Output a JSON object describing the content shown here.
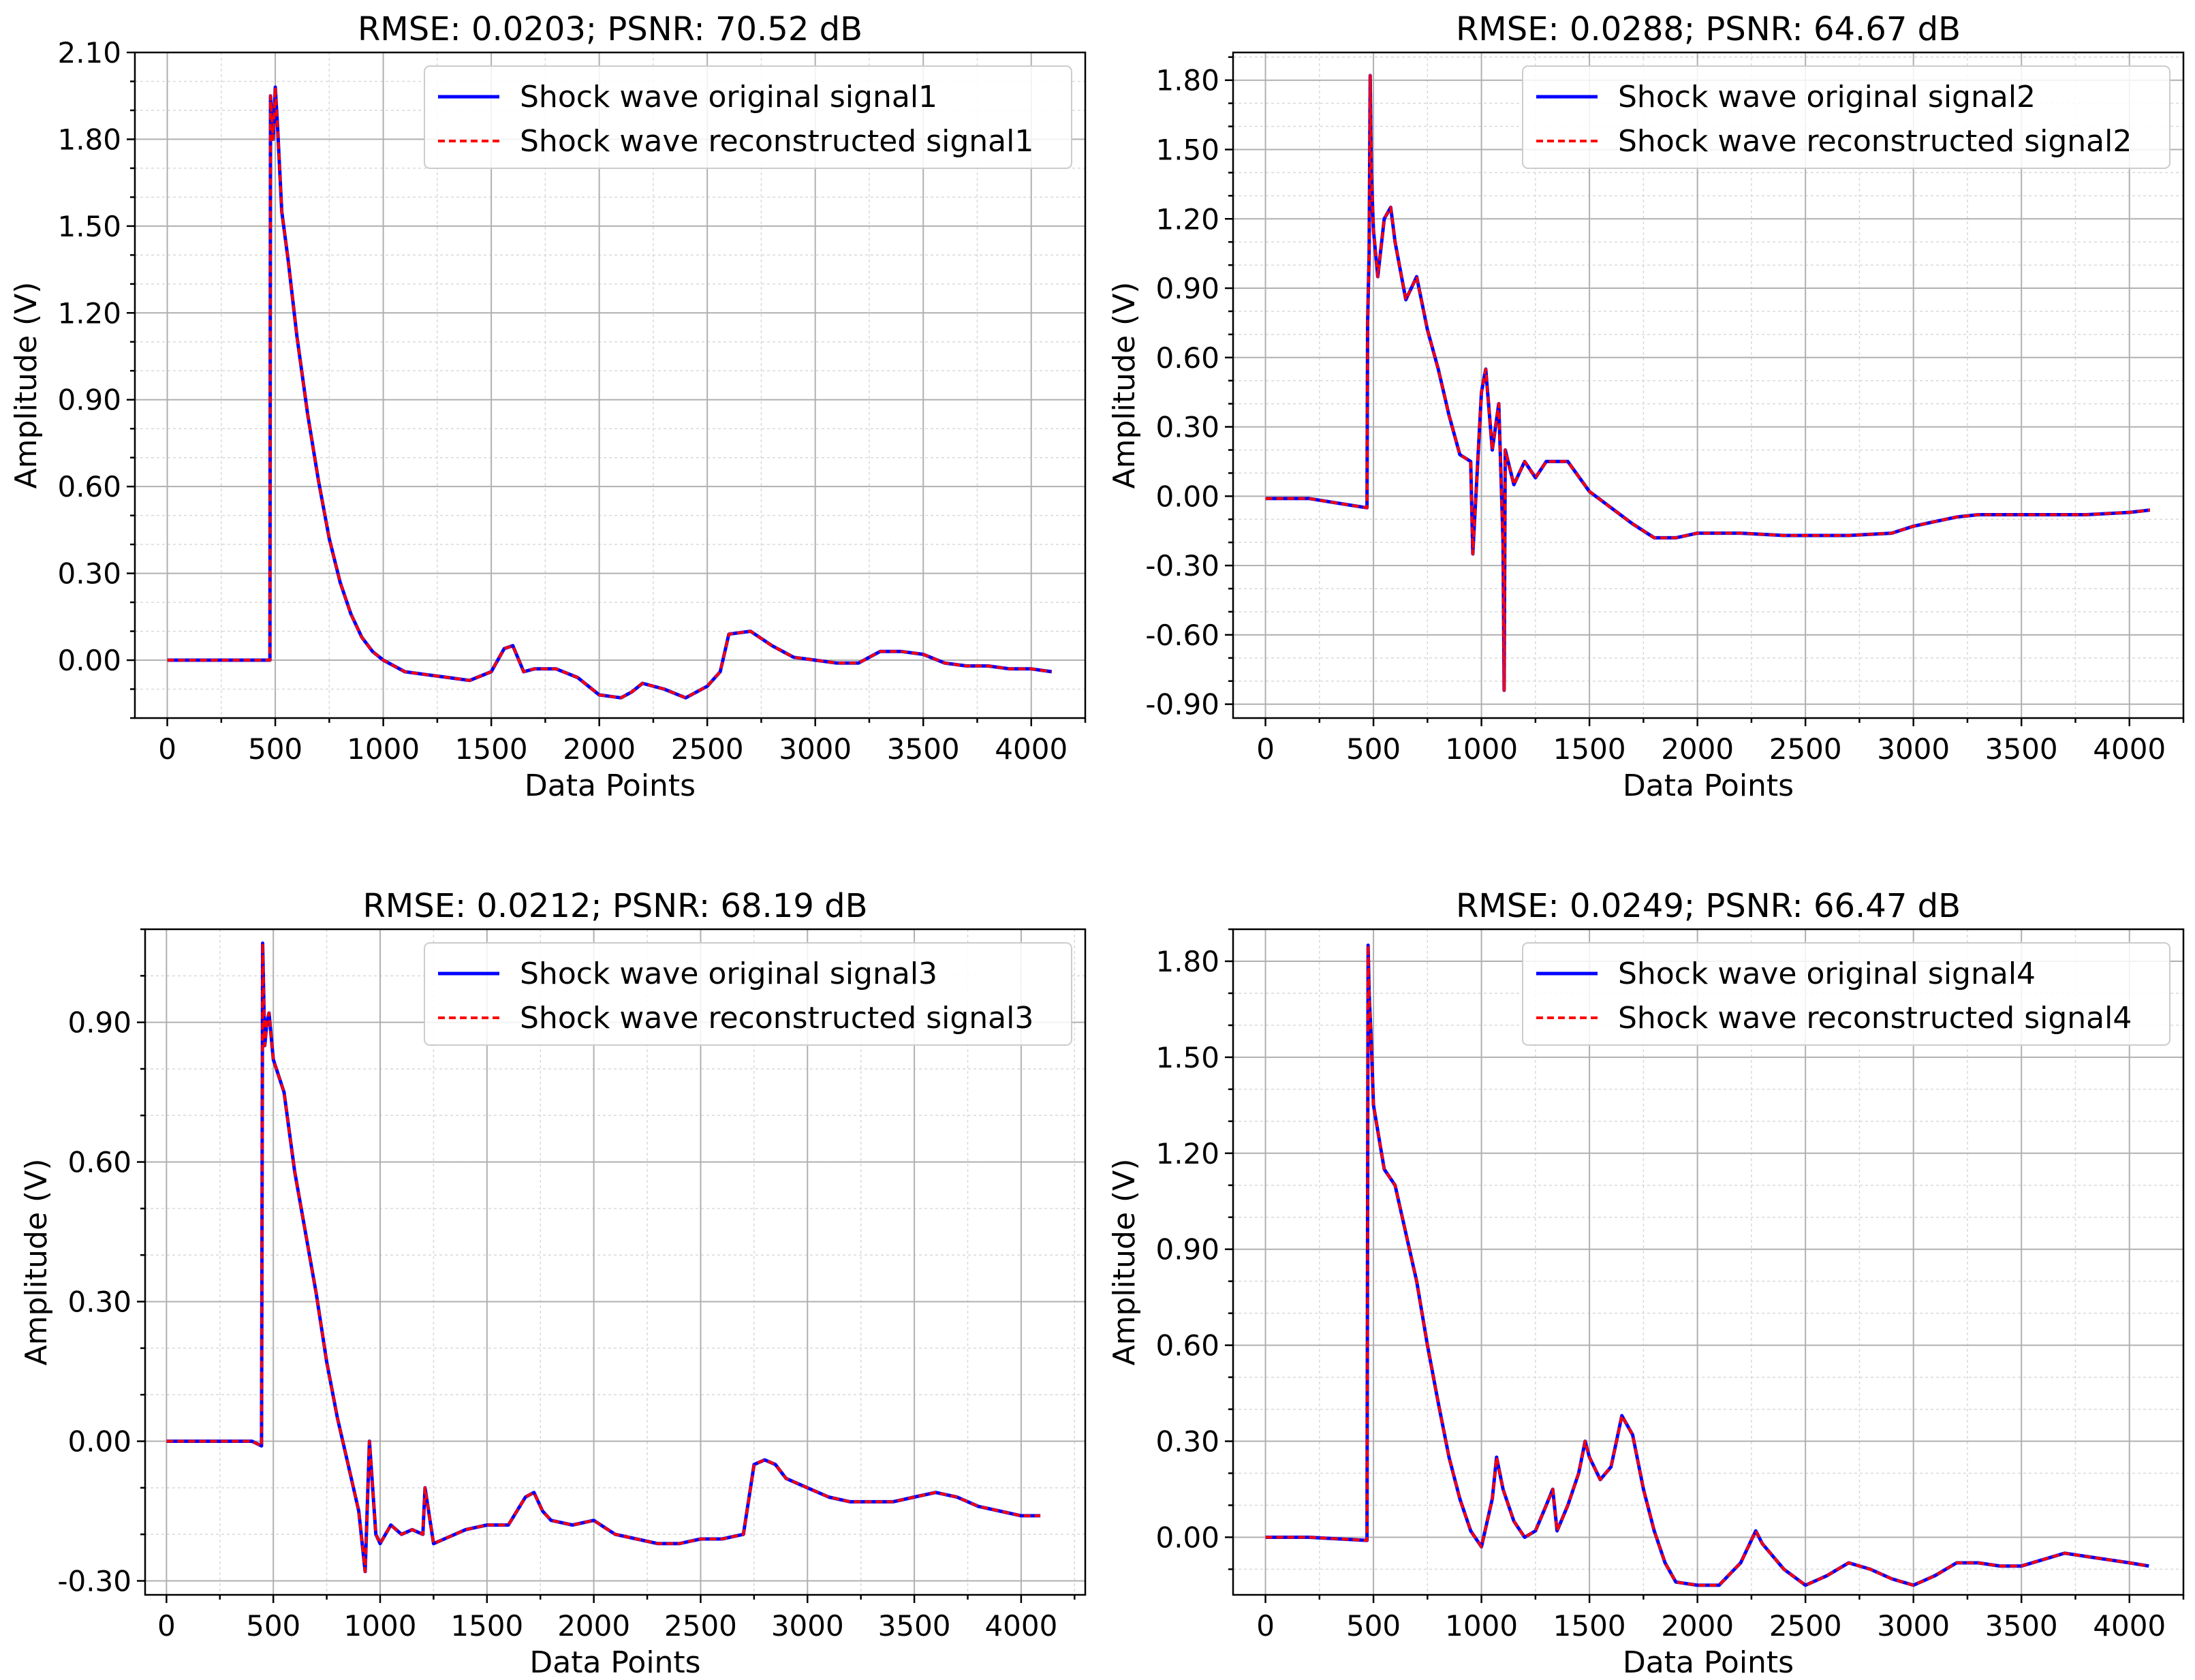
{
  "figure": {
    "colors": {
      "original": "#0000ff",
      "reconstructed": "#ff0000",
      "grid": "#b0b0b0"
    }
  },
  "chart_data": [
    {
      "type": "line",
      "title": "RMSE: 0.0203; PSNR: 70.52 dB",
      "xlabel": "Data Points",
      "ylabel": "Amplitude (V)",
      "xlim": [
        -150,
        4250
      ],
      "ylim": [
        -0.2,
        2.1
      ],
      "xticks": [
        0,
        500,
        1000,
        1500,
        2000,
        2500,
        3000,
        3500,
        4000
      ],
      "yticks": [
        0.0,
        0.3,
        0.6,
        0.9,
        1.2,
        1.5,
        1.8,
        2.1
      ],
      "ytick_labels": [
        "0.00",
        "0.30",
        "0.60",
        "0.90",
        "1.20",
        "1.50",
        "1.80",
        "2.10"
      ],
      "grid": true,
      "legend_position": "upper right",
      "series": [
        {
          "name": "Shock wave original signal1",
          "style": "solid",
          "color": "#0000ff"
        },
        {
          "name": "Shock wave reconstructed signal1",
          "style": "dashed",
          "color": "#ff0000"
        }
      ],
      "x": [
        0,
        475,
        478,
        490,
        500,
        510,
        530,
        560,
        600,
        650,
        700,
        750,
        800,
        850,
        900,
        950,
        1000,
        1100,
        1200,
        1300,
        1400,
        1500,
        1560,
        1600,
        1650,
        1700,
        1800,
        1900,
        2000,
        2100,
        2150,
        2200,
        2300,
        2400,
        2500,
        2560,
        2600,
        2700,
        2800,
        2900,
        3000,
        3100,
        3200,
        3300,
        3400,
        3500,
        3600,
        3700,
        3800,
        3900,
        4000,
        4095
      ],
      "values": [
        0.0,
        0.0,
        1.95,
        1.8,
        1.98,
        1.85,
        1.55,
        1.38,
        1.12,
        0.85,
        0.62,
        0.42,
        0.27,
        0.16,
        0.08,
        0.03,
        0.0,
        -0.04,
        -0.05,
        -0.06,
        -0.07,
        -0.04,
        0.04,
        0.05,
        -0.04,
        -0.03,
        -0.03,
        -0.06,
        -0.12,
        -0.13,
        -0.11,
        -0.08,
        -0.1,
        -0.13,
        -0.09,
        -0.04,
        0.09,
        0.1,
        0.05,
        0.01,
        0.0,
        -0.01,
        -0.01,
        0.03,
        0.03,
        0.02,
        -0.01,
        -0.02,
        -0.02,
        -0.03,
        -0.03,
        -0.04
      ]
    },
    {
      "type": "line",
      "title": "RMSE: 0.0288; PSNR: 64.67 dB",
      "xlabel": "Data Points",
      "ylabel": "Amplitude (V)",
      "xlim": [
        -150,
        4250
      ],
      "ylim": [
        -0.96,
        1.92
      ],
      "xticks": [
        0,
        500,
        1000,
        1500,
        2000,
        2500,
        3000,
        3500,
        4000
      ],
      "yticks": [
        -0.9,
        -0.6,
        -0.3,
        0.0,
        0.3,
        0.6,
        0.9,
        1.2,
        1.5,
        1.8
      ],
      "ytick_labels": [
        "-0.90",
        "-0.60",
        "-0.30",
        "0.00",
        "0.30",
        "0.60",
        "0.90",
        "1.20",
        "1.50",
        "1.80"
      ],
      "grid": true,
      "legend_position": "upper right",
      "series": [
        {
          "name": "Shock wave original signal2",
          "style": "solid",
          "color": "#0000ff"
        },
        {
          "name": "Shock wave reconstructed signal2",
          "style": "dashed",
          "color": "#ff0000"
        }
      ],
      "x": [
        0,
        200,
        400,
        470,
        473,
        480,
        485,
        490,
        500,
        520,
        550,
        580,
        600,
        650,
        700,
        750,
        800,
        850,
        900,
        950,
        960,
        1000,
        1020,
        1050,
        1080,
        1100,
        1105,
        1110,
        1150,
        1200,
        1250,
        1300,
        1400,
        1500,
        1600,
        1700,
        1800,
        1900,
        2000,
        2200,
        2400,
        2500,
        2700,
        2900,
        3000,
        3100,
        3200,
        3300,
        3400,
        3500,
        3600,
        3800,
        4000,
        4095
      ],
      "values": [
        -0.01,
        -0.01,
        -0.04,
        -0.05,
        0.75,
        1.05,
        1.82,
        1.4,
        1.15,
        0.95,
        1.2,
        1.25,
        1.1,
        0.85,
        0.95,
        0.72,
        0.55,
        0.35,
        0.18,
        0.15,
        -0.25,
        0.45,
        0.55,
        0.2,
        0.4,
        -0.2,
        -0.84,
        0.2,
        0.05,
        0.15,
        0.08,
        0.15,
        0.15,
        0.02,
        -0.05,
        -0.12,
        -0.18,
        -0.18,
        -0.16,
        -0.16,
        -0.17,
        -0.17,
        -0.17,
        -0.16,
        -0.13,
        -0.11,
        -0.09,
        -0.08,
        -0.08,
        -0.08,
        -0.08,
        -0.08,
        -0.07,
        -0.06
      ]
    },
    {
      "type": "line",
      "title": "RMSE: 0.0212; PSNR: 68.19 dB",
      "xlabel": "Data Points",
      "ylabel": "Amplitude (V)",
      "xlim": [
        -100,
        4300
      ],
      "ylim": [
        -0.33,
        1.1
      ],
      "xticks": [
        0,
        500,
        1000,
        1500,
        2000,
        2500,
        3000,
        3500,
        4000
      ],
      "yticks": [
        -0.3,
        0.0,
        0.3,
        0.6,
        0.9
      ],
      "ytick_labels": [
        "-0.30",
        "0.00",
        "0.30",
        "0.60",
        "0.90"
      ],
      "grid": true,
      "legend_position": "upper right",
      "series": [
        {
          "name": "Shock wave original signal3",
          "style": "solid",
          "color": "#0000ff"
        },
        {
          "name": "Shock wave reconstructed signal3",
          "style": "dashed",
          "color": "#ff0000"
        }
      ],
      "x": [
        0,
        200,
        400,
        445,
        450,
        460,
        470,
        480,
        500,
        550,
        600,
        650,
        700,
        750,
        800,
        850,
        900,
        930,
        950,
        980,
        1000,
        1050,
        1100,
        1150,
        1200,
        1210,
        1250,
        1300,
        1400,
        1500,
        1600,
        1680,
        1720,
        1760,
        1800,
        1900,
        2000,
        2100,
        2200,
        2300,
        2400,
        2500,
        2600,
        2700,
        2750,
        2800,
        2850,
        2900,
        3000,
        3100,
        3200,
        3300,
        3400,
        3500,
        3600,
        3700,
        3800,
        3900,
        4000,
        4090
      ],
      "values": [
        0.0,
        0.0,
        0.0,
        -0.01,
        1.07,
        0.85,
        0.9,
        0.92,
        0.82,
        0.75,
        0.58,
        0.45,
        0.32,
        0.17,
        0.05,
        -0.05,
        -0.15,
        -0.28,
        0.0,
        -0.2,
        -0.22,
        -0.18,
        -0.2,
        -0.19,
        -0.2,
        -0.1,
        -0.22,
        -0.21,
        -0.19,
        -0.18,
        -0.18,
        -0.12,
        -0.11,
        -0.15,
        -0.17,
        -0.18,
        -0.17,
        -0.2,
        -0.21,
        -0.22,
        -0.22,
        -0.21,
        -0.21,
        -0.2,
        -0.05,
        -0.04,
        -0.05,
        -0.08,
        -0.1,
        -0.12,
        -0.13,
        -0.13,
        -0.13,
        -0.12,
        -0.11,
        -0.12,
        -0.14,
        -0.15,
        -0.16,
        -0.16
      ]
    },
    {
      "type": "line",
      "title": "RMSE: 0.0249; PSNR: 66.47 dB",
      "xlabel": "Data Points",
      "ylabel": "Amplitude (V)",
      "xlim": [
        -150,
        4250
      ],
      "ylim": [
        -0.18,
        1.9
      ],
      "xticks": [
        0,
        500,
        1000,
        1500,
        2000,
        2500,
        3000,
        3500,
        4000
      ],
      "yticks": [
        0.0,
        0.3,
        0.6,
        0.9,
        1.2,
        1.5,
        1.8
      ],
      "ytick_labels": [
        "0.00",
        "0.30",
        "0.60",
        "0.90",
        "1.20",
        "1.50",
        "1.80"
      ],
      "grid": true,
      "legend_position": "upper right",
      "series": [
        {
          "name": "Shock wave original signal4",
          "style": "solid",
          "color": "#0000ff"
        },
        {
          "name": "Shock wave reconstructed signal4",
          "style": "dashed",
          "color": "#ff0000"
        }
      ],
      "x": [
        0,
        200,
        470,
        475,
        480,
        490,
        500,
        550,
        600,
        650,
        700,
        750,
        800,
        850,
        900,
        950,
        1000,
        1050,
        1070,
        1100,
        1150,
        1200,
        1250,
        1300,
        1330,
        1350,
        1400,
        1450,
        1480,
        1500,
        1550,
        1600,
        1650,
        1700,
        1750,
        1800,
        1850,
        1900,
        2000,
        2100,
        2200,
        2270,
        2300,
        2400,
        2500,
        2600,
        2700,
        2800,
        2900,
        3000,
        3100,
        3200,
        3300,
        3400,
        3500,
        3600,
        3700,
        3800,
        3900,
        4000,
        4090
      ],
      "values": [
        0.0,
        0.0,
        -0.01,
        1.85,
        1.7,
        1.55,
        1.35,
        1.15,
        1.1,
        0.95,
        0.8,
        0.6,
        0.42,
        0.25,
        0.12,
        0.02,
        -0.03,
        0.12,
        0.25,
        0.15,
        0.05,
        0.0,
        0.02,
        0.1,
        0.15,
        0.02,
        0.1,
        0.2,
        0.3,
        0.25,
        0.18,
        0.22,
        0.38,
        0.32,
        0.15,
        0.02,
        -0.08,
        -0.14,
        -0.15,
        -0.15,
        -0.08,
        0.02,
        -0.02,
        -0.1,
        -0.15,
        -0.12,
        -0.08,
        -0.1,
        -0.13,
        -0.15,
        -0.12,
        -0.08,
        -0.08,
        -0.09,
        -0.09,
        -0.07,
        -0.05,
        -0.06,
        -0.07,
        -0.08,
        -0.09
      ]
    }
  ]
}
